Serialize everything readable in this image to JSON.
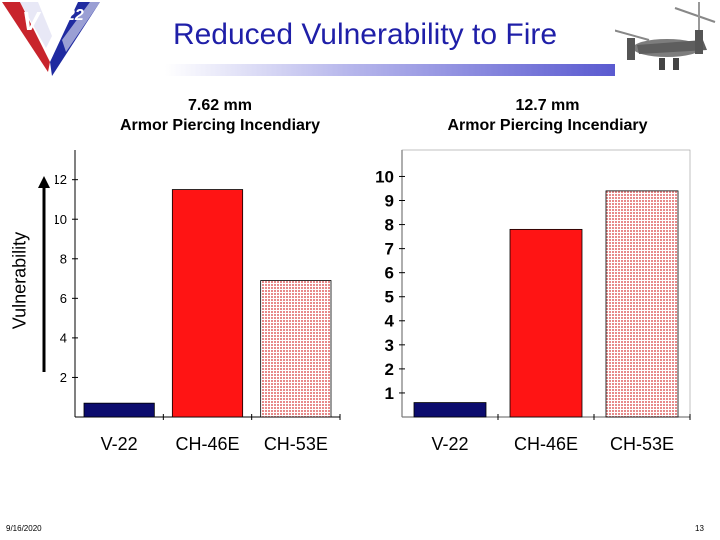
{
  "slide": {
    "title": "Reduced Vulnerability to Fire",
    "date": "9/16/2020",
    "page_number": "13",
    "logo_text": "V 22",
    "photo": "v22-aircraft-photo"
  },
  "chart_data": [
    {
      "type": "bar",
      "title": "7.62 mm\nArmor Piercing Incendiary",
      "title_lines": [
        "7.62 mm",
        "Armor Piercing Incendiary"
      ],
      "ylabel": "Vulnerability",
      "categories": [
        "V-22",
        "CH-46E",
        "CH-53E"
      ],
      "values": [
        0.7,
        11.5,
        6.9
      ],
      "ylim": [
        0,
        13.5
      ],
      "yticks": [
        "2",
        "4",
        "6",
        "8",
        "10",
        "12"
      ],
      "colors": [
        "#0c0c6e",
        "#ff1414",
        "#f4b8b8"
      ],
      "grid": false
    },
    {
      "type": "bar",
      "title": "12.7 mm\nArmor Piercing Incendiary",
      "title_lines": [
        "12.7 mm",
        "Armor Piercing Incendiary"
      ],
      "categories": [
        "V-22",
        "CH-46E",
        "CH-53E"
      ],
      "values": [
        0.6,
        7.8,
        9.4
      ],
      "ylim": [
        0,
        11.1
      ],
      "yticks": [
        "1",
        "2",
        "3",
        "4",
        "5",
        "6",
        "7",
        "8",
        "9",
        "10"
      ],
      "colors": [
        "#0c0c6e",
        "#ff1414",
        "#f4b8b8"
      ],
      "grid": false
    }
  ]
}
